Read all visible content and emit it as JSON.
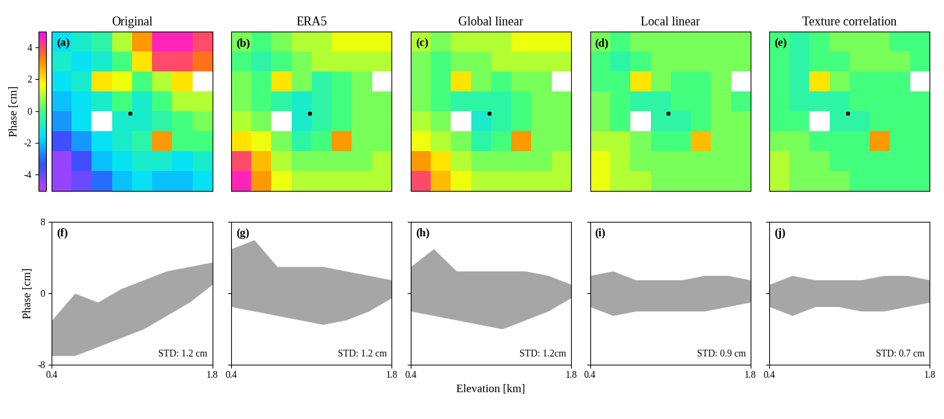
{
  "chart_data": [
    {
      "type": "heatmap",
      "title": "Original",
      "annotations": [
        "(a)"
      ],
      "tick_labels": false,
      "reference": [
        3.4,
        3.6
      ],
      "colorbar": {
        "label": "Phase [cm]",
        "range": [
          -5,
          5
        ],
        "ticks": [
          -4,
          -2,
          0,
          2,
          4
        ]
      },
      "cells": [
        [
          -1.5,
          -1,
          -0.5,
          1,
          3,
          4.5,
          4.5,
          4
        ],
        [
          -1,
          -1.5,
          -1,
          0,
          2,
          4,
          4,
          3.5
        ],
        [
          -1.5,
          -1,
          2,
          1.5,
          0,
          1,
          2,
          null
        ],
        [
          -2,
          -1.5,
          -1,
          0,
          -1,
          0,
          1,
          1
        ],
        [
          -2.5,
          -1.5,
          null,
          -1,
          -1,
          -0.5,
          0,
          0.5
        ],
        [
          -3.5,
          -2.5,
          -1.5,
          -1,
          -0.5,
          3,
          0,
          0
        ],
        [
          -4.5,
          -3.5,
          -2,
          -1.5,
          -1,
          -1,
          -1.5,
          -1
        ],
        [
          -4.5,
          -4,
          -3,
          -2,
          -1.5,
          -2,
          -2,
          -1.5
        ]
      ]
    },
    {
      "type": "heatmap",
      "title": "ERA5",
      "annotations": [
        "(b)"
      ],
      "tick_labels": false,
      "reference": [
        3.4,
        3.6
      ],
      "cells": [
        [
          0.5,
          0,
          0.5,
          1,
          1,
          1.5,
          1.5,
          1.5
        ],
        [
          0,
          -0.5,
          0,
          0.5,
          1,
          1,
          1,
          1
        ],
        [
          0.5,
          0,
          2,
          0.5,
          -0.5,
          0,
          0.5,
          null
        ],
        [
          0.5,
          0,
          -0.5,
          -1,
          -0.5,
          0,
          0.5,
          0.5
        ],
        [
          1,
          0.5,
          null,
          -1,
          -0.5,
          0,
          0.5,
          0.5
        ],
        [
          2,
          1.5,
          0.5,
          -0.5,
          0,
          3,
          0.5,
          0.5
        ],
        [
          4,
          2.5,
          1,
          0.5,
          0.5,
          0.5,
          0.5,
          1
        ],
        [
          4.5,
          3,
          1.5,
          1,
          1,
          1,
          1,
          1
        ]
      ]
    },
    {
      "type": "heatmap",
      "title": "Global linear",
      "annotations": [
        "(c)"
      ],
      "tick_labels": false,
      "reference": [
        3.4,
        3.6
      ],
      "cells": [
        [
          1,
          0.5,
          1,
          1,
          1,
          1.5,
          1.5,
          1.5
        ],
        [
          0.5,
          0,
          0.5,
          0.5,
          1,
          1,
          1,
          1
        ],
        [
          0.5,
          0,
          2,
          0.5,
          0,
          0.5,
          0.5,
          null
        ],
        [
          0.5,
          0,
          -0.5,
          -0.5,
          -0.5,
          0,
          0.5,
          0.5
        ],
        [
          1,
          0.5,
          null,
          -1,
          -0.5,
          0,
          0.5,
          0.5
        ],
        [
          1.5,
          1,
          0.5,
          -0.5,
          0,
          3,
          0.5,
          0.5
        ],
        [
          3,
          2,
          1,
          0.5,
          0.5,
          0.5,
          0.5,
          1
        ],
        [
          4,
          2.5,
          1.5,
          1,
          1,
          1,
          1,
          1
        ]
      ]
    },
    {
      "type": "heatmap",
      "title": "Local linear",
      "annotations": [
        "(d)"
      ],
      "tick_labels": false,
      "reference": [
        3.4,
        3.6
      ],
      "cells": [
        [
          0.5,
          0,
          0.5,
          0.5,
          0.5,
          0.5,
          0.5,
          0.5
        ],
        [
          0,
          -0.5,
          0,
          0.5,
          0.5,
          0.5,
          0.5,
          0.5
        ],
        [
          0,
          0,
          2,
          0.5,
          0,
          0,
          0.5,
          null
        ],
        [
          0.5,
          0,
          -0.5,
          -0.5,
          0,
          0,
          0.5,
          0
        ],
        [
          0.5,
          0,
          null,
          -0.5,
          -0.5,
          0,
          0.5,
          0.5
        ],
        [
          1,
          1,
          0.5,
          0,
          0,
          2.5,
          0.5,
          0.5
        ],
        [
          1.5,
          1,
          0.5,
          0.5,
          0.5,
          0.5,
          0.5,
          0.5
        ],
        [
          1.5,
          1,
          1,
          0.5,
          0.5,
          0.5,
          0.5,
          0.5
        ]
      ]
    },
    {
      "type": "heatmap",
      "title": "Texture correlation",
      "annotations": [
        "(e)"
      ],
      "tick_labels": false,
      "reference": [
        3.4,
        3.6
      ],
      "cells": [
        [
          0,
          -0.5,
          0,
          0.5,
          0.5,
          0.5,
          0,
          0
        ],
        [
          0,
          -0.5,
          0,
          0,
          0.5,
          0.5,
          0.5,
          0
        ],
        [
          0,
          -0.5,
          2,
          0.5,
          0,
          0,
          0,
          null
        ],
        [
          0,
          -0.5,
          -0.5,
          -0.5,
          0,
          0,
          0,
          0
        ],
        [
          0,
          0,
          null,
          -0.5,
          -0.5,
          0,
          0,
          0
        ],
        [
          0.5,
          0.5,
          0,
          0,
          0,
          3,
          0,
          0
        ],
        [
          1,
          0.5,
          0.5,
          0,
          0,
          0,
          0,
          0
        ],
        [
          1,
          0.5,
          0.5,
          0.5,
          0,
          0,
          0,
          0
        ]
      ]
    },
    {
      "type": "area",
      "annotations": [
        "(f)",
        "STD: 1.2 cm"
      ],
      "color": "#a6a6a6",
      "tick_labels": true,
      "x": [
        0.4,
        0.6,
        0.8,
        1.0,
        1.2,
        1.4,
        1.6,
        1.8
      ],
      "lower": [
        -7,
        -7,
        -6,
        -5,
        -4,
        -2.5,
        -1,
        1
      ],
      "upper": [
        -3,
        0,
        -1,
        0.5,
        1.5,
        2.5,
        3,
        3.5
      ],
      "ylabel": "Phase [cm]",
      "xlim": [
        0.4,
        1.8
      ],
      "xticks": [
        0.4,
        1.8
      ],
      "ylim": [
        -8,
        8
      ],
      "yticks": [
        -8,
        0,
        8
      ]
    },
    {
      "type": "area",
      "annotations": [
        "(g)",
        "STD: 1.2 cm"
      ],
      "color": "#a6a6a6",
      "tick_labels": "x",
      "x": [
        0.4,
        0.6,
        0.8,
        1.0,
        1.2,
        1.4,
        1.6,
        1.8
      ],
      "lower": [
        -1.5,
        -2,
        -2.5,
        -3,
        -3.5,
        -3,
        -2,
        -0.5
      ],
      "upper": [
        5,
        6,
        3,
        3,
        3,
        2.5,
        2,
        1.5
      ],
      "xlim": [
        0.4,
        1.8
      ],
      "xticks": [
        0.4,
        1.8
      ],
      "ylim": [
        -8,
        8
      ],
      "yticks": [
        -8,
        0,
        8
      ]
    },
    {
      "type": "area",
      "annotations": [
        "(h)",
        "STD: 1.2cm"
      ],
      "color": "#a6a6a6",
      "tick_labels": "x",
      "x": [
        0.4,
        0.6,
        0.8,
        1.0,
        1.2,
        1.4,
        1.6,
        1.8
      ],
      "lower": [
        -2,
        -2.5,
        -3,
        -3.5,
        -4,
        -3,
        -2,
        -0.5
      ],
      "upper": [
        3,
        5,
        2.5,
        2.5,
        2.5,
        2.5,
        2,
        1
      ],
      "xlabel": "Elevation [km]",
      "xlim": [
        0.4,
        1.8
      ],
      "xticks": [
        0.4,
        1.8
      ],
      "ylim": [
        -8,
        8
      ],
      "yticks": [
        -8,
        0,
        8
      ]
    },
    {
      "type": "area",
      "annotations": [
        "(i)",
        "STD: 0.9 cm"
      ],
      "color": "#a6a6a6",
      "tick_labels": "x",
      "x": [
        0.4,
        0.6,
        0.8,
        1.0,
        1.2,
        1.4,
        1.6,
        1.8
      ],
      "lower": [
        -1.5,
        -2.5,
        -2,
        -2,
        -2,
        -2,
        -1.5,
        -1
      ],
      "upper": [
        2,
        2.5,
        1.5,
        1.5,
        1.5,
        2,
        2,
        1.5
      ],
      "xlim": [
        0.4,
        1.8
      ],
      "xticks": [
        0.4,
        1.8
      ],
      "ylim": [
        -8,
        8
      ],
      "yticks": [
        -8,
        0,
        8
      ]
    },
    {
      "type": "area",
      "annotations": [
        "(j)",
        "STD: 0.7 cm"
      ],
      "color": "#a6a6a6",
      "tick_labels": "x",
      "x": [
        0.4,
        0.6,
        0.8,
        1.0,
        1.2,
        1.4,
        1.6,
        1.8
      ],
      "lower": [
        -1.5,
        -2.5,
        -1.5,
        -1.5,
        -2,
        -2,
        -1.5,
        -1
      ],
      "upper": [
        1,
        2,
        1.5,
        1.5,
        1.5,
        2,
        2,
        1.5
      ],
      "xlim": [
        0.4,
        1.8
      ],
      "xticks": [
        0.4,
        1.8
      ],
      "ylim": [
        -8,
        8
      ],
      "yticks": [
        -8,
        0,
        8
      ]
    }
  ]
}
